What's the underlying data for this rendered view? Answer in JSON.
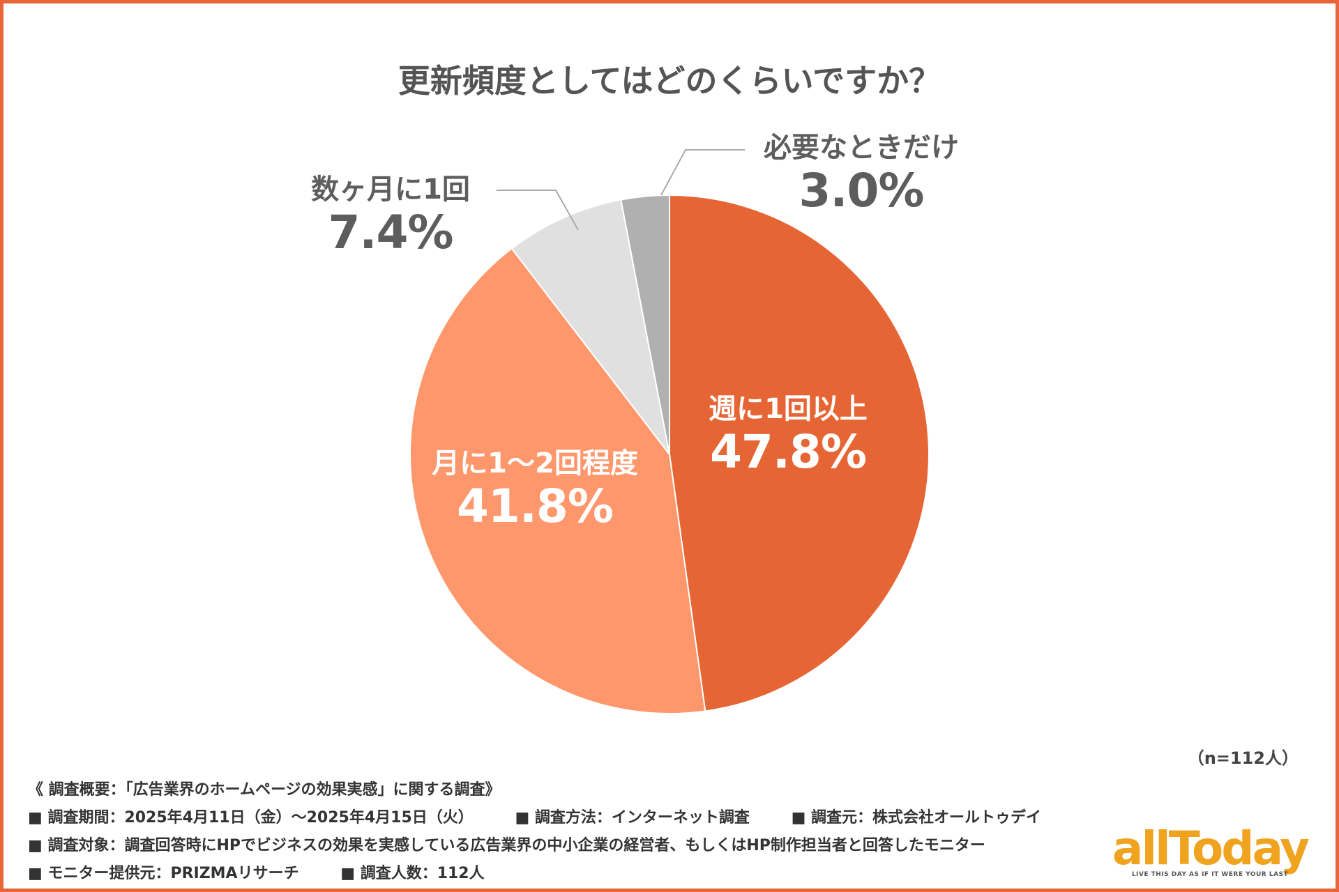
{
  "colors": {
    "border": "#e8643a",
    "slices": [
      "#e66535",
      "#fe976c",
      "#e0e0e0",
      "#b0b0b0"
    ],
    "leader": "#aaaaaa",
    "logo": "#f0a31f"
  },
  "chart_data": {
    "type": "pie",
    "title": "更新頻度としてはどのくらいですか？",
    "slices": [
      {
        "label": "週に1回以上",
        "value": 47.8,
        "pct": "47.8%"
      },
      {
        "label": "月に1〜2回程度",
        "value": 41.8,
        "pct": "41.8%"
      },
      {
        "label": "数ヶ月に1回",
        "value": 7.4,
        "pct": "7.4%"
      },
      {
        "label": "必要なときだけ",
        "value": 3.0,
        "pct": "3.0%"
      }
    ],
    "start": "12 o'clock",
    "direction": "clockwise"
  },
  "sample_note": "（n=112人）",
  "survey": {
    "heading": "《 調査概要：「広告業界のホームページの効果実感」に関する調査》",
    "period": "■ 調査期間：2025年4月11日（金）〜2025年4月15日（火）",
    "method": "■ 調査方法：インターネット調査",
    "source": "■ 調査元：株式会社オールトゥデイ",
    "target": "■ 調査対象：調査回答時にHPでビジネスの効果を実感している広告業界の中小企業の経営者、もしくはHP制作担当者と回答したモニター",
    "provider": "■ モニター提供元：PRIZMAリサーチ",
    "count": "■ 調査人数：112人"
  },
  "logo": {
    "word": "allToday",
    "tagline": "LIVE THIS DAY AS IF IT WERE YOUR LAST"
  }
}
